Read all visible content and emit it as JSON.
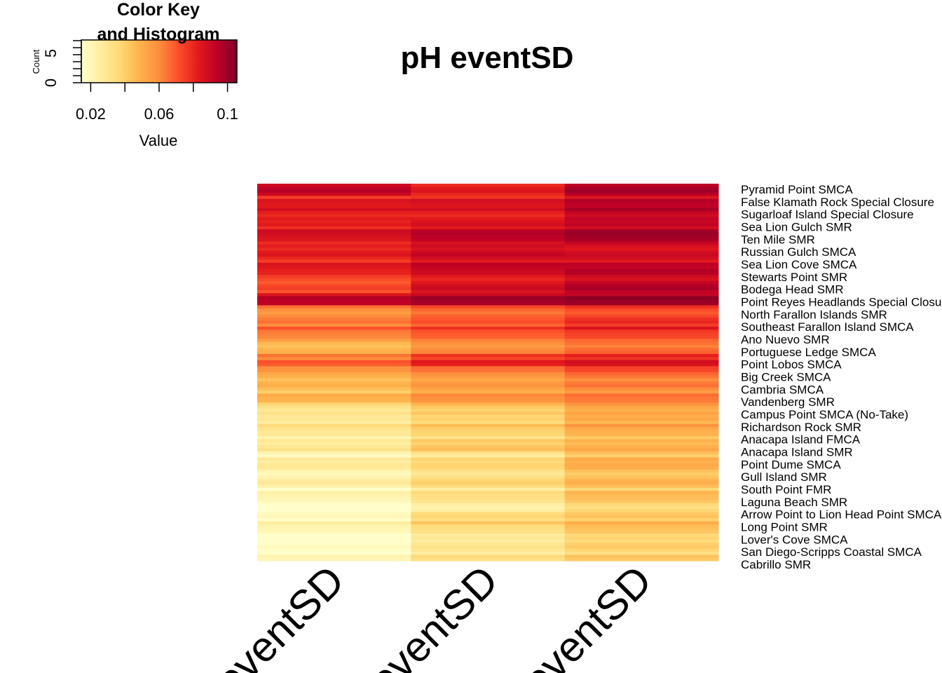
{
  "chart_data": {
    "type": "heatmap",
    "title": "pH eventSD",
    "columns": [
      "eventSD",
      "eventSD",
      "eventSD"
    ],
    "row_labels": [
      "Pyramid Point SMCA",
      "False Klamath Rock Special Closure",
      "Sugarloaf Island Special Closure",
      "Sea Lion Gulch SMR",
      "Ten Mile SMR",
      "Russian Gulch SMCA",
      "Sea Lion Cove SMCA",
      "Stewarts Point SMR",
      "Bodega Head SMR",
      "Point Reyes Headlands Special Closure",
      "North Farallon Islands SMR",
      "Southeast Farallon Island SMCA",
      "Ano Nuevo SMR",
      "Portuguese Ledge SMCA",
      "Point Lobos SMCA",
      "Big Creek SMCA",
      "Cambria SMCA",
      "Vandenberg SMR",
      "Campus Point SMCA (No-Take)",
      "Richardson Rock SMR",
      "Anacapa Island FMCA",
      "Anacapa Island SMR",
      "Point Dume SMCA",
      "Gull Island SMR",
      "South Point FMR",
      "Laguna Beach SMR",
      "Arrow Point to Lion Head Point SMCA",
      "Long Point SMR",
      "Lover's Cove SMCA",
      "San Diego-Scripps Coastal SMCA",
      "Cabrillo SMR"
    ],
    "values": [
      [
        0.095,
        0.085,
        0.1
      ],
      [
        0.08,
        0.082,
        0.09
      ],
      [
        0.085,
        0.085,
        0.095
      ],
      [
        0.083,
        0.088,
        0.093
      ],
      [
        0.082,
        0.09,
        0.095
      ],
      [
        0.085,
        0.092,
        0.09
      ],
      [
        0.08,
        0.088,
        0.088
      ],
      [
        0.078,
        0.086,
        0.092
      ],
      [
        0.075,
        0.09,
        0.098
      ],
      [
        0.09,
        0.095,
        0.097
      ],
      [
        0.062,
        0.07,
        0.075
      ],
      [
        0.065,
        0.072,
        0.08
      ],
      [
        0.058,
        0.065,
        0.07
      ],
      [
        0.05,
        0.062,
        0.068
      ],
      [
        0.065,
        0.078,
        0.082
      ],
      [
        0.055,
        0.062,
        0.07
      ],
      [
        0.05,
        0.058,
        0.065
      ],
      [
        0.045,
        0.055,
        0.06
      ],
      [
        0.035,
        0.045,
        0.055
      ],
      [
        0.03,
        0.04,
        0.052
      ],
      [
        0.025,
        0.035,
        0.045
      ],
      [
        0.032,
        0.045,
        0.052
      ],
      [
        0.022,
        0.032,
        0.045
      ],
      [
        0.025,
        0.035,
        0.047
      ],
      [
        0.028,
        0.04,
        0.05
      ],
      [
        0.018,
        0.03,
        0.042
      ],
      [
        0.016,
        0.028,
        0.04
      ],
      [
        0.02,
        0.038,
        0.044
      ],
      [
        0.017,
        0.03,
        0.04
      ],
      [
        0.018,
        0.032,
        0.042
      ],
      [
        0.016,
        0.03,
        0.038
      ]
    ],
    "color_key": {
      "title_lines": [
        "Color Key",
        "and Histogram"
      ],
      "xlabel": "Value",
      "ylabel": "Count",
      "tick_labels": [
        "0.02",
        "0.06",
        "0.1"
      ],
      "tick_values": [
        0.02,
        0.06,
        0.1
      ],
      "value_range": [
        0.0145,
        0.1055
      ],
      "count_tick_labels": [
        "0",
        "5"
      ],
      "colors": [
        "#FFFFCC",
        "#FFEDA0",
        "#FED976",
        "#FEB24C",
        "#FD8D3C",
        "#FC4E2A",
        "#E31A1C",
        "#BD0026",
        "#800026"
      ]
    }
  }
}
